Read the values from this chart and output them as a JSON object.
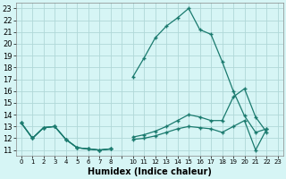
{
  "xlabel": "Humidex (Indice chaleur)",
  "bg_color": "#d6f5f5",
  "grid_color": "#b0d8d8",
  "line_color": "#1a7a6e",
  "x_labels": [
    "0",
    "1",
    "2",
    "3",
    "4",
    "5",
    "6",
    "7",
    "8",
    "",
    "10",
    "11",
    "12",
    "13",
    "14",
    "15",
    "16",
    "17",
    "18",
    "19",
    "20",
    "21",
    "22",
    "23"
  ],
  "ylim": [
    10.5,
    23.5
  ],
  "y_ticks": [
    11,
    12,
    13,
    14,
    15,
    16,
    17,
    18,
    19,
    20,
    21,
    22,
    23
  ],
  "series": [
    [
      13.3,
      12.0,
      12.9,
      13.0,
      11.9,
      11.2,
      11.1,
      11.0,
      11.1,
      null,
      17.2,
      18.8,
      20.5,
      21.5,
      22.2,
      23.0,
      21.2,
      20.8,
      18.5,
      16.0,
      13.9,
      12.5,
      12.8,
      null
    ],
    [
      13.3,
      12.0,
      12.9,
      13.0,
      11.9,
      11.2,
      11.1,
      11.0,
      11.1,
      null,
      12.1,
      12.3,
      12.6,
      13.0,
      13.5,
      14.0,
      13.8,
      13.5,
      13.5,
      15.5,
      16.2,
      13.8,
      12.5,
      null
    ],
    [
      13.3,
      12.0,
      12.9,
      13.0,
      11.9,
      11.2,
      11.1,
      11.0,
      11.1,
      null,
      11.9,
      12.0,
      12.2,
      12.5,
      12.8,
      13.0,
      12.9,
      12.8,
      12.5,
      13.0,
      13.5,
      11.0,
      12.8,
      null
    ]
  ]
}
